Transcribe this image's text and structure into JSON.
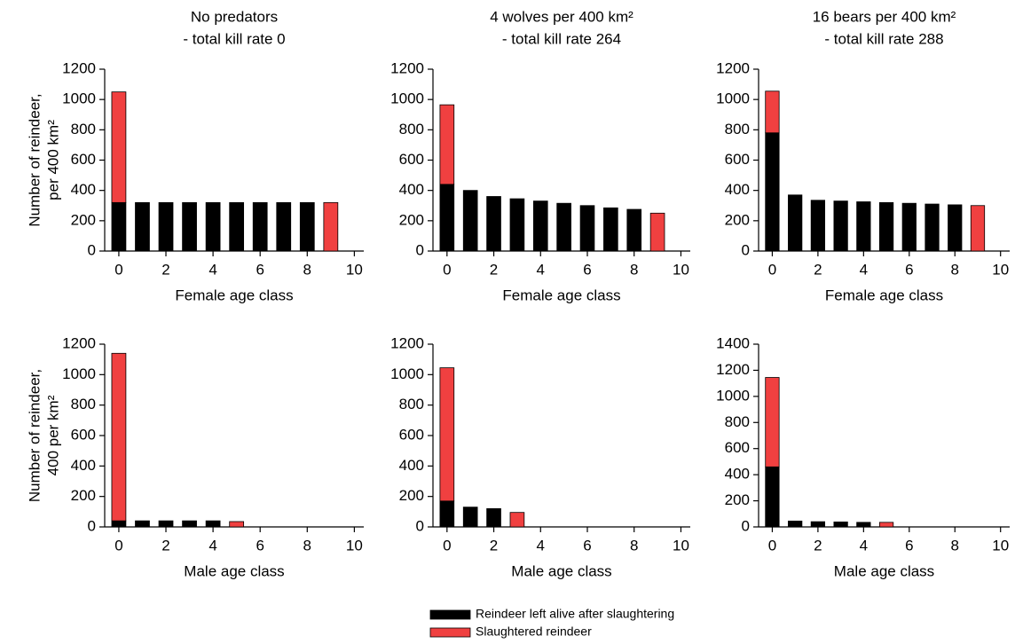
{
  "chart_data": [
    {
      "type": "bar",
      "stacked": true,
      "title": [
        "No predators",
        "- total kill rate 0"
      ],
      "y_label": [
        "Number of reindeer,",
        "per 400 km²"
      ],
      "x_label": "Female age class",
      "x": [
        0,
        1,
        2,
        3,
        4,
        5,
        6,
        7,
        8,
        9
      ],
      "series": [
        {
          "name": "Reindeer left alive after slaughtering",
          "color": "#000000",
          "values": [
            320,
            320,
            320,
            320,
            320,
            320,
            320,
            320,
            320,
            0
          ]
        },
        {
          "name": "Slaughtered reindeer",
          "color": "#f04040",
          "values": [
            730,
            0,
            0,
            0,
            0,
            0,
            0,
            0,
            0,
            320
          ]
        }
      ],
      "xlim": [
        -0.6,
        10.4
      ],
      "xticks": [
        0,
        2,
        4,
        6,
        8,
        10
      ],
      "ylim": [
        0,
        1200
      ],
      "yticks": [
        0,
        200,
        400,
        600,
        800,
        1000,
        1200
      ]
    },
    {
      "type": "bar",
      "stacked": true,
      "title": [
        "4 wolves per 400 km²",
        "- total kill rate 264"
      ],
      "x_label": "Female age class",
      "x": [
        0,
        1,
        2,
        3,
        4,
        5,
        6,
        7,
        8,
        9
      ],
      "series": [
        {
          "color": "#000000",
          "values": [
            440,
            400,
            360,
            345,
            330,
            315,
            300,
            285,
            275,
            0
          ]
        },
        {
          "color": "#f04040",
          "values": [
            525,
            0,
            0,
            0,
            0,
            0,
            0,
            0,
            0,
            250
          ]
        }
      ],
      "xlim": [
        -0.6,
        10.4
      ],
      "xticks": [
        0,
        2,
        4,
        6,
        8,
        10
      ],
      "ylim": [
        0,
        1200
      ],
      "yticks": [
        0,
        200,
        400,
        600,
        800,
        1000,
        1200
      ]
    },
    {
      "type": "bar",
      "stacked": true,
      "title": [
        "16 bears per 400 km²",
        "- total kill rate 288"
      ],
      "x_label": "Female age class",
      "x": [
        0,
        1,
        2,
        3,
        4,
        5,
        6,
        7,
        8,
        9
      ],
      "series": [
        {
          "color": "#000000",
          "values": [
            780,
            370,
            335,
            330,
            325,
            320,
            315,
            310,
            305,
            0
          ]
        },
        {
          "color": "#f04040",
          "values": [
            275,
            0,
            0,
            0,
            0,
            0,
            0,
            0,
            0,
            300
          ]
        }
      ],
      "xlim": [
        -0.6,
        10.4
      ],
      "xticks": [
        0,
        2,
        4,
        6,
        8,
        10
      ],
      "ylim": [
        0,
        1200
      ],
      "yticks": [
        0,
        200,
        400,
        600,
        800,
        1000,
        1200
      ]
    },
    {
      "type": "bar",
      "stacked": true,
      "y_label": [
        "Number of reindeer,",
        "400 per km²"
      ],
      "x_label": "Male age class",
      "x": [
        0,
        1,
        2,
        3,
        4,
        5,
        6,
        7,
        8,
        9
      ],
      "series": [
        {
          "color": "#000000",
          "values": [
            40,
            40,
            40,
            40,
            40,
            0,
            0,
            0,
            0,
            0
          ]
        },
        {
          "color": "#f04040",
          "values": [
            1100,
            0,
            0,
            0,
            0,
            35,
            0,
            0,
            0,
            0
          ]
        }
      ],
      "xlim": [
        -0.6,
        10.4
      ],
      "xticks": [
        0,
        2,
        4,
        6,
        8,
        10
      ],
      "ylim": [
        0,
        1200
      ],
      "yticks": [
        0,
        200,
        400,
        600,
        800,
        1000,
        1200
      ]
    },
    {
      "type": "bar",
      "stacked": true,
      "x_label": "Male age class",
      "x": [
        0,
        1,
        2,
        3,
        4,
        5,
        6,
        7,
        8,
        9
      ],
      "series": [
        {
          "color": "#000000",
          "values": [
            170,
            130,
            120,
            0,
            0,
            0,
            0,
            0,
            0,
            0
          ]
        },
        {
          "color": "#f04040",
          "values": [
            875,
            0,
            0,
            95,
            0,
            0,
            0,
            0,
            0,
            0
          ]
        }
      ],
      "xlim": [
        -0.6,
        10.4
      ],
      "xticks": [
        0,
        2,
        4,
        6,
        8,
        10
      ],
      "ylim": [
        0,
        1200
      ],
      "yticks": [
        0,
        200,
        400,
        600,
        800,
        1000,
        1200
      ]
    },
    {
      "type": "bar",
      "stacked": true,
      "x_label": "Male age class",
      "x": [
        0,
        1,
        2,
        3,
        4,
        5,
        6,
        7,
        8,
        9
      ],
      "series": [
        {
          "color": "#000000",
          "values": [
            460,
            45,
            40,
            38,
            35,
            0,
            0,
            0,
            0,
            0
          ]
        },
        {
          "color": "#f04040",
          "values": [
            685,
            0,
            0,
            0,
            0,
            35,
            0,
            0,
            0,
            0
          ]
        }
      ],
      "xlim": [
        -0.6,
        10.4
      ],
      "xticks": [
        0,
        2,
        4,
        6,
        8,
        10
      ],
      "ylim": [
        0,
        1400
      ],
      "yticks": [
        0,
        200,
        400,
        600,
        800,
        1000,
        1200,
        1400
      ]
    }
  ]
}
